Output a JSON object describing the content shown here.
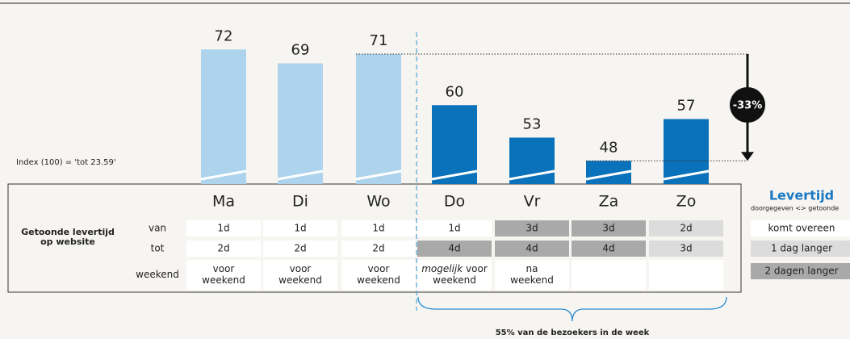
{
  "chart_data": {
    "type": "bar",
    "categories": [
      "Ma",
      "Di",
      "Wo",
      "Do",
      "Vr",
      "Za",
      "Zo"
    ],
    "values": [
      72,
      69,
      71,
      60,
      53,
      48,
      57
    ],
    "colors": [
      "#add4ec",
      "#add4ec",
      "#add4ec",
      "#0a72ba",
      "#0a72ba",
      "#0a72ba",
      "#0a72ba"
    ],
    "ylim": [
      43,
      75
    ],
    "annotations": {
      "index_note": "Index (100) = 'tot 23.59'",
      "change": "-33%",
      "brace_label": "55% van de bezoekers in de week"
    }
  },
  "table": {
    "row_label": [
      "Getoonde levertijd",
      "op website"
    ],
    "rows": [
      {
        "label": "van",
        "cells": [
          "1d",
          "1d",
          "1d",
          "1d",
          "3d",
          "3d",
          "2d"
        ],
        "colors": [
          "#ffffff",
          "#ffffff",
          "#ffffff",
          "#ffffff",
          "#a9a9a9",
          "#a9a9a9",
          "#dcdcdc"
        ]
      },
      {
        "label": "tot",
        "cells": [
          "2d",
          "2d",
          "2d",
          "4d",
          "4d",
          "4d",
          "3d"
        ],
        "colors": [
          "#ffffff",
          "#ffffff",
          "#ffffff",
          "#a9a9a9",
          "#a9a9a9",
          "#a9a9a9",
          "#dcdcdc"
        ]
      },
      {
        "label": "weekend",
        "cells": [
          {
            "lines": [
              "voor",
              "weekend"
            ]
          },
          {
            "lines": [
              "voor",
              "weekend"
            ]
          },
          {
            "lines": [
              "voor",
              "weekend"
            ]
          },
          {
            "em": "mogelijk",
            "lines": [
              " voor",
              "weekend"
            ]
          },
          {
            "lines": [
              "na",
              "weekend"
            ]
          }
        ],
        "colors": [
          "#ffffff",
          "#ffffff",
          "#ffffff",
          "#ffffff",
          "#ffffff",
          "#ffffff",
          "#ffffff"
        ]
      }
    ]
  },
  "legend": {
    "title": "Levertijd",
    "subtitle": "doorgegeven <> getoonde",
    "items": [
      "komt overeen",
      "1 dag langer",
      "2 dagen langer"
    ],
    "colors": [
      "#ffffff",
      "#dcdcdc",
      "#a9a9a9"
    ]
  }
}
